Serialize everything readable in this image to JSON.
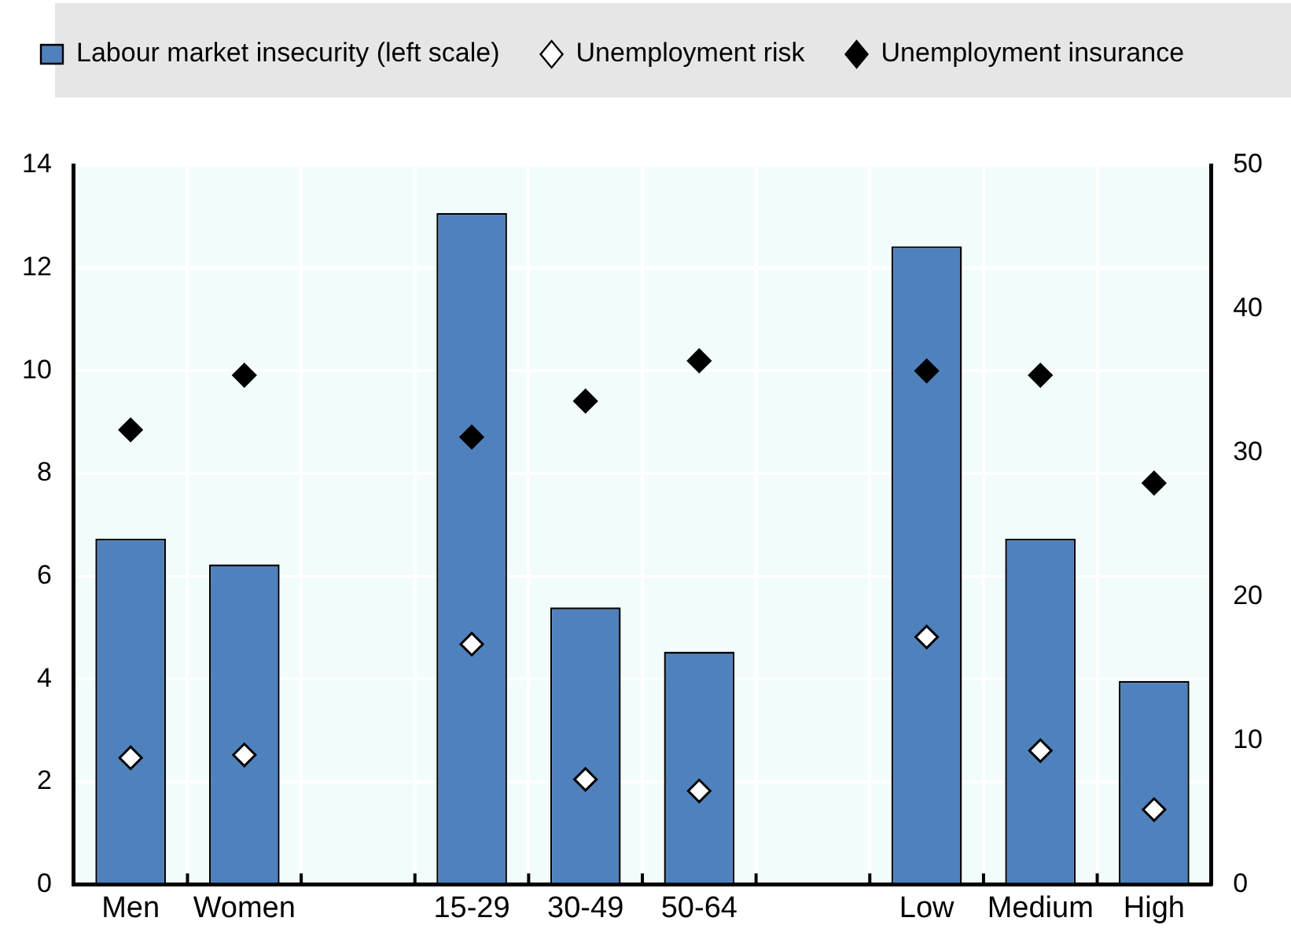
{
  "chart_data": {
    "type": "bar",
    "categories": [
      "Men",
      "Women",
      null,
      "15-29",
      "30-49",
      "50-64",
      null,
      "Low",
      "Medium",
      "High"
    ],
    "series": [
      {
        "name": "Labour market insecurity (left scale)",
        "color": "#4f81bd",
        "values": [
          6.73,
          6.23,
          null,
          13.07,
          5.39,
          4.53,
          null,
          12.42,
          6.73,
          3.96
        ]
      },
      {
        "name": "Unemployment risk",
        "type": "scatter",
        "axis": "y2",
        "marker": "diamond",
        "color": "#ffffff",
        "values": [
          8.8,
          9.0,
          null,
          16.7,
          7.3,
          6.5,
          null,
          17.2,
          9.3,
          5.2
        ]
      },
      {
        "name": "Unemployment insurance",
        "type": "scatter",
        "axis": "y2",
        "marker": "diamond",
        "color": "#000000",
        "values": [
          31.6,
          35.4,
          null,
          31.1,
          33.6,
          36.4,
          null,
          35.7,
          35.4,
          27.9
        ]
      }
    ],
    "ylim": [
      0,
      14
    ],
    "yticks": [
      0,
      2,
      4,
      6,
      8,
      10,
      12,
      14
    ],
    "y2lim": [
      0,
      50
    ],
    "y2ticks": [
      0,
      10,
      20,
      30,
      40,
      50
    ],
    "grid": true,
    "legend": "top"
  }
}
